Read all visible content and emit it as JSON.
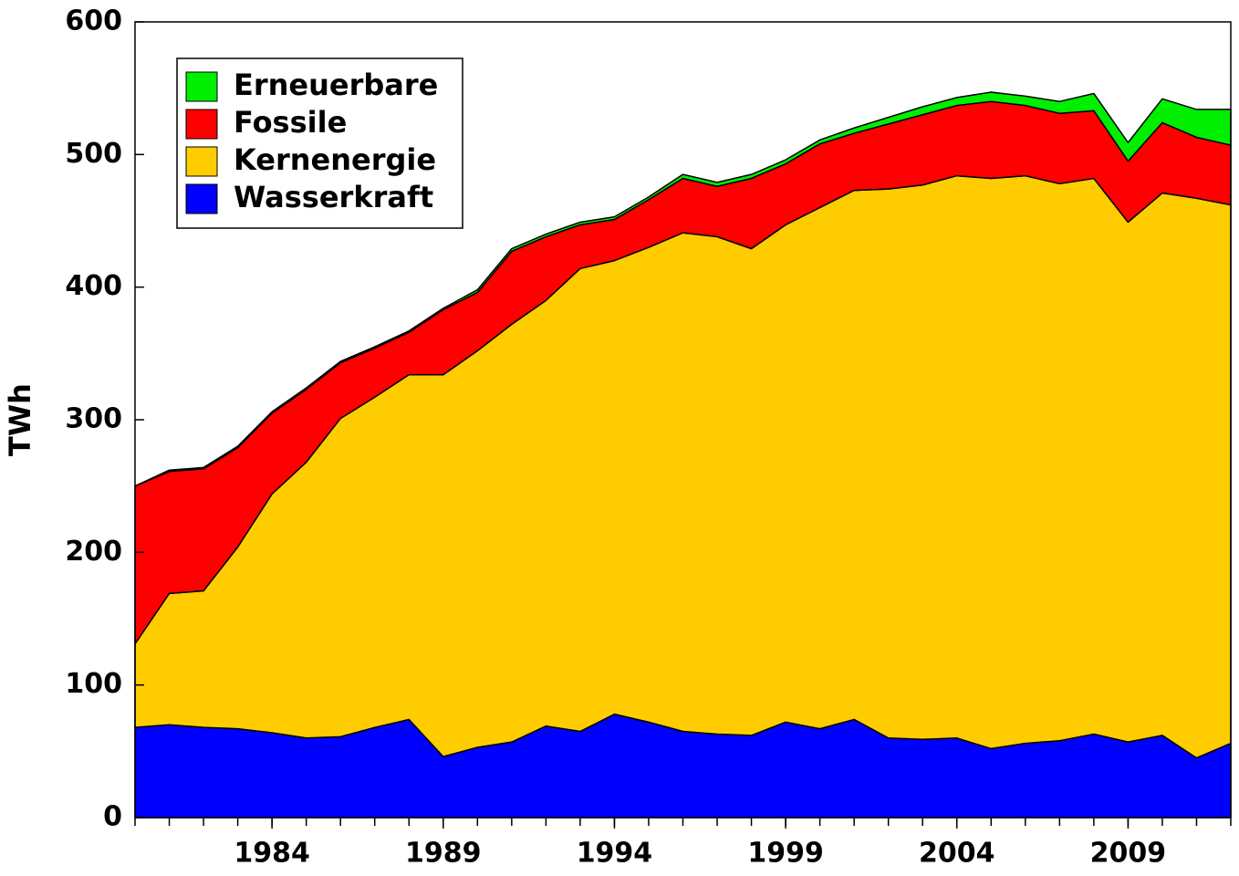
{
  "chart_data": {
    "type": "stacked_area",
    "y_label": "TWh",
    "x": [
      1980,
      1981,
      1982,
      1983,
      1984,
      1985,
      1986,
      1987,
      1988,
      1989,
      1990,
      1991,
      1992,
      1993,
      1994,
      1995,
      1996,
      1997,
      1998,
      1999,
      2000,
      2001,
      2002,
      2003,
      2004,
      2005,
      2006,
      2007,
      2008,
      2009,
      2010,
      2011,
      2012
    ],
    "xlim": [
      1980,
      2012
    ],
    "xticks": [
      1984,
      1989,
      1994,
      1999,
      2004,
      2009
    ],
    "ylim": [
      0,
      600
    ],
    "yticks": [
      0,
      100,
      200,
      300,
      400,
      500,
      600
    ],
    "grid": false,
    "legend": "upper left",
    "series": [
      {
        "name": "Wasserkraft",
        "color": "#0000ff",
        "values": [
          68,
          70,
          68,
          67,
          64,
          60,
          61,
          68,
          74,
          46,
          53,
          57,
          69,
          65,
          78,
          72,
          65,
          63,
          62,
          72,
          67,
          74,
          60,
          59,
          60,
          52,
          56,
          58,
          63,
          57,
          62,
          45,
          56
        ]
      },
      {
        "name": "Kernenergie",
        "color": "#ffcc00",
        "values": [
          63,
          99,
          103,
          137,
          180,
          208,
          240,
          249,
          260,
          288,
          299,
          315,
          321,
          349,
          342,
          358,
          376,
          375,
          367,
          375,
          393,
          399,
          414,
          418,
          424,
          430,
          428,
          420,
          419,
          392,
          409,
          422,
          406
        ]
      },
      {
        "name": "Fossile",
        "color": "#ff0000",
        "values": [
          119,
          92,
          92,
          75,
          61,
          55,
          42,
          37,
          32,
          49,
          44,
          55,
          48,
          33,
          31,
          36,
          41,
          38,
          53,
          46,
          48,
          43,
          49,
          53,
          53,
          58,
          53,
          53,
          51,
          46,
          53,
          46,
          45
        ]
      },
      {
        "name": "Erneuerbare",
        "color": "#00ee00",
        "values": [
          0,
          1,
          1,
          1,
          1,
          1,
          1,
          1,
          1,
          1,
          2,
          2,
          2,
          2,
          2,
          2,
          3,
          3,
          3,
          3,
          3,
          4,
          5,
          6,
          6,
          7,
          7,
          9,
          13,
          14,
          18,
          21,
          27
        ]
      }
    ]
  }
}
